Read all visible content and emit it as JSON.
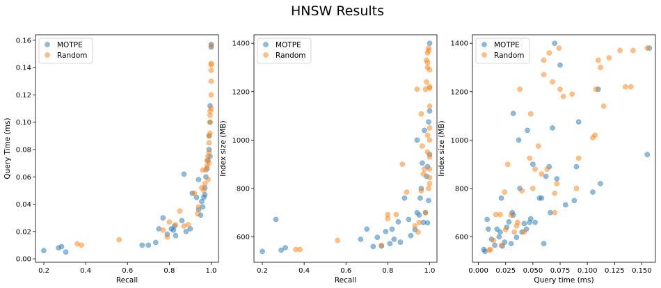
{
  "figure": {
    "title": "HNSW Results"
  },
  "colors": {
    "motpe": "#1f77b4",
    "random": "#ff7f0e"
  },
  "chart_data": [
    {
      "type": "scatter",
      "xlabel": "Recall",
      "ylabel": "Query Time (ms)",
      "xlim": [
        0.16,
        1.035
      ],
      "ylim": [
        -0.0025,
        0.164
      ],
      "xticks": [
        0.2,
        0.4,
        0.6,
        0.8,
        1.0
      ],
      "xtick_labels": [
        "0.2",
        "0.4",
        "0.6",
        "0.8",
        "1.0"
      ],
      "yticks": [
        0.0,
        0.02,
        0.04,
        0.06,
        0.08,
        0.1,
        0.12,
        0.14,
        0.16
      ],
      "ytick_labels": [
        "0.00",
        "0.02",
        "0.04",
        "0.06",
        "0.08",
        "0.10",
        "0.12",
        "0.14",
        "0.16"
      ],
      "legend": {
        "position": "top-left",
        "entries": [
          "MOTPE",
          "Random"
        ]
      },
      "series": [
        {
          "name": "MOTPE",
          "points": [
            [
              0.2,
              0.006
            ],
            [
              0.27,
              0.008
            ],
            [
              0.285,
              0.009
            ],
            [
              0.305,
              0.005
            ],
            [
              0.67,
              0.01
            ],
            [
              0.7,
              0.01
            ],
            [
              0.735,
              0.012
            ],
            [
              0.75,
              0.022
            ],
            [
              0.77,
              0.03
            ],
            [
              0.79,
              0.018
            ],
            [
              0.81,
              0.022
            ],
            [
              0.82,
              0.021
            ],
            [
              0.83,
              0.017
            ],
            [
              0.825,
              0.024
            ],
            [
              0.86,
              0.028
            ],
            [
              0.87,
              0.062
            ],
            [
              0.88,
              0.02
            ],
            [
              0.9,
              0.022
            ],
            [
              0.91,
              0.048
            ],
            [
              0.93,
              0.045
            ],
            [
              0.94,
              0.058
            ],
            [
              0.94,
              0.036
            ],
            [
              0.95,
              0.032
            ],
            [
              0.955,
              0.042
            ],
            [
              0.96,
              0.038
            ],
            [
              0.965,
              0.045
            ],
            [
              0.97,
              0.047
            ],
            [
              0.97,
              0.052
            ],
            [
              0.975,
              0.06
            ],
            [
              0.98,
              0.066
            ],
            [
              0.985,
              0.072
            ],
            [
              0.99,
              0.08
            ],
            [
              0.99,
              0.09
            ],
            [
              0.995,
              0.1
            ],
            [
              0.995,
              0.112
            ],
            [
              1.0,
              0.155
            ],
            [
              1.0,
              0.157
            ],
            [
              0.995,
              0.075
            ]
          ]
        },
        {
          "name": "Random",
          "points": [
            [
              0.36,
              0.011
            ],
            [
              0.38,
              0.01
            ],
            [
              0.56,
              0.014
            ],
            [
              0.77,
              0.021
            ],
            [
              0.79,
              0.016
            ],
            [
              0.8,
              0.027
            ],
            [
              0.83,
              0.025
            ],
            [
              0.85,
              0.035
            ],
            [
              0.87,
              0.024
            ],
            [
              0.89,
              0.025
            ],
            [
              0.92,
              0.048
            ],
            [
              0.935,
              0.033
            ],
            [
              0.94,
              0.038
            ],
            [
              0.955,
              0.052
            ],
            [
              0.96,
              0.065
            ],
            [
              0.965,
              0.05
            ],
            [
              0.97,
              0.055
            ],
            [
              0.975,
              0.065
            ],
            [
              0.98,
              0.068
            ],
            [
              0.98,
              0.072
            ],
            [
              0.985,
              0.058
            ],
            [
              0.985,
              0.075
            ],
            [
              0.99,
              0.07
            ],
            [
              0.99,
              0.078
            ],
            [
              0.99,
              0.085
            ],
            [
              0.99,
              0.09
            ],
            [
              0.995,
              0.092
            ],
            [
              0.995,
              0.1
            ],
            [
              0.995,
              0.105
            ],
            [
              0.995,
              0.108
            ],
            [
              1.0,
              0.11
            ],
            [
              1.0,
              0.12
            ],
            [
              1.0,
              0.13
            ],
            [
              1.0,
              0.138
            ],
            [
              1.0,
              0.142
            ],
            [
              1.0,
              0.143
            ],
            [
              1.0,
              0.156
            ]
          ]
        }
      ]
    },
    {
      "type": "scatter",
      "xlabel": "Recall",
      "ylabel": "Index size (MB)",
      "xlim": [
        0.16,
        1.035
      ],
      "ylim": [
        495,
        1435
      ],
      "xticks": [
        0.2,
        0.4,
        0.6,
        0.8,
        1.0
      ],
      "xtick_labels": [
        "0.2",
        "0.4",
        "0.6",
        "0.8",
        "1.0"
      ],
      "yticks": [
        600,
        800,
        1000,
        1200,
        1400
      ],
      "ytick_labels": [
        "600",
        "800",
        "1000",
        "1200",
        "1400"
      ],
      "legend": {
        "position": "top-left",
        "entries": [
          "MOTPE",
          "Random"
        ]
      },
      "series": [
        {
          "name": "MOTPE",
          "points": [
            [
              0.2,
              540
            ],
            [
              0.265,
              672
            ],
            [
              0.29,
              545
            ],
            [
              0.31,
              555
            ],
            [
              0.67,
              590
            ],
            [
              0.7,
              632
            ],
            [
              0.73,
              560
            ],
            [
              0.75,
              598
            ],
            [
              0.77,
              562
            ],
            [
              0.79,
              622
            ],
            [
              0.81,
              572
            ],
            [
              0.82,
              632
            ],
            [
              0.83,
              590
            ],
            [
              0.85,
              662
            ],
            [
              0.86,
              578
            ],
            [
              0.88,
              760
            ],
            [
              0.9,
              672
            ],
            [
              0.91,
              605
            ],
            [
              0.93,
              630
            ],
            [
              0.94,
              700
            ],
            [
              0.94,
              1000
            ],
            [
              0.95,
              690
            ],
            [
              0.955,
              760
            ],
            [
              0.96,
              800
            ],
            [
              0.965,
              905
            ],
            [
              0.97,
              660
            ],
            [
              0.975,
              1040
            ],
            [
              0.98,
              700
            ],
            [
              0.985,
              850
            ],
            [
              0.99,
              658
            ],
            [
              0.99,
              890
            ],
            [
              0.995,
              1075
            ],
            [
              1.0,
              1120
            ],
            [
              1.0,
              1400
            ],
            [
              1.0,
              940
            ],
            [
              0.995,
              750
            ]
          ]
        },
        {
          "name": "Random",
          "points": [
            [
              0.36,
              548
            ],
            [
              0.38,
              548
            ],
            [
              0.56,
              585
            ],
            [
              0.77,
              565
            ],
            [
              0.8,
              692
            ],
            [
              0.8,
              675
            ],
            [
              0.84,
              692
            ],
            [
              0.87,
              900
            ],
            [
              0.89,
              785
            ],
            [
              0.93,
              645
            ],
            [
              0.94,
              1210
            ],
            [
              0.945,
              620
            ],
            [
              0.95,
              660
            ],
            [
              0.96,
              1108
            ],
            [
              0.96,
              790
            ],
            [
              0.965,
              975
            ],
            [
              0.97,
              860
            ],
            [
              0.975,
              880
            ],
            [
              0.98,
              1210
            ],
            [
              0.98,
              700
            ],
            [
              0.985,
              1330
            ],
            [
              0.985,
              1240
            ],
            [
              0.99,
              1300
            ],
            [
              0.99,
              1320
            ],
            [
              0.99,
              1360
            ],
            [
              0.99,
              950
            ],
            [
              0.99,
              1020
            ],
            [
              0.995,
              1370
            ],
            [
              0.995,
              1380
            ],
            [
              0.995,
              800
            ],
            [
              1.0,
              1215
            ],
            [
              1.0,
              1220
            ],
            [
              1.0,
              1290
            ],
            [
              1.0,
              1140
            ],
            [
              1.0,
              1050
            ],
            [
              1.0,
              1000
            ],
            [
              1.0,
              930
            ],
            [
              1.0,
              880
            ],
            [
              1.0,
              845
            ],
            [
              1.0,
              820
            ]
          ]
        }
      ]
    },
    {
      "type": "scatter",
      "xlabel": "Query time (ms)",
      "ylabel": "Index size (MB)",
      "xlim": [
        -0.0055,
        0.1625
      ],
      "ylim": [
        495,
        1435
      ],
      "xticks": [
        0.0,
        0.025,
        0.05,
        0.075,
        0.1,
        0.125,
        0.15
      ],
      "xtick_labels": [
        "0.000",
        "0.025",
        "0.050",
        "0.075",
        "0.100",
        "0.125",
        "0.150"
      ],
      "yticks": [
        600,
        800,
        1000,
        1200,
        1400
      ],
      "ytick_labels": [
        "600",
        "800",
        "1000",
        "1200",
        "1400"
      ],
      "legend": {
        "position": "top-left",
        "entries": [
          "MOTPE",
          "Random"
        ]
      },
      "series": [
        {
          "name": "MOTPE",
          "points": [
            [
              0.005,
              548
            ],
            [
              0.006,
              540
            ],
            [
              0.008,
              672
            ],
            [
              0.009,
              632
            ],
            [
              0.012,
              590
            ],
            [
              0.015,
              565
            ],
            [
              0.017,
              632
            ],
            [
              0.019,
              600
            ],
            [
              0.02,
              620
            ],
            [
              0.021,
              760
            ],
            [
              0.022,
              562
            ],
            [
              0.024,
              578
            ],
            [
              0.026,
              640
            ],
            [
              0.028,
              662
            ],
            [
              0.03,
              572
            ],
            [
              0.031,
              700
            ],
            [
              0.032,
              690
            ],
            [
              0.032,
              1110
            ],
            [
              0.035,
              598
            ],
            [
              0.037,
              1000
            ],
            [
              0.038,
              800
            ],
            [
              0.04,
              620
            ],
            [
              0.042,
              655
            ],
            [
              0.044,
              632
            ],
            [
              0.045,
              1040
            ],
            [
              0.047,
              660
            ],
            [
              0.048,
              675
            ],
            [
              0.05,
              900
            ],
            [
              0.052,
              660
            ],
            [
              0.056,
              760
            ],
            [
              0.058,
              760
            ],
            [
              0.06,
              572
            ],
            [
              0.062,
              850
            ],
            [
              0.065,
              890
            ],
            [
              0.066,
              700
            ],
            [
              0.068,
              1050
            ],
            [
              0.07,
              1400
            ],
            [
              0.072,
              840
            ],
            [
              0.075,
              1310
            ],
            [
              0.08,
              732
            ],
            [
              0.088,
              750
            ],
            [
              0.09,
              890
            ],
            [
              0.092,
              1075
            ],
            [
              0.105,
              785
            ],
            [
              0.11,
              1210
            ],
            [
              0.112,
              820
            ],
            [
              0.157,
              1380
            ],
            [
              0.155,
              940
            ]
          ]
        },
        {
          "name": "Random",
          "points": [
            [
              0.01,
              545
            ],
            [
              0.011,
              548
            ],
            [
              0.014,
              585
            ],
            [
              0.016,
              692
            ],
            [
              0.02,
              692
            ],
            [
              0.021,
              565
            ],
            [
              0.024,
              785
            ],
            [
              0.025,
              630
            ],
            [
              0.027,
              900
            ],
            [
              0.03,
              690
            ],
            [
              0.033,
              620
            ],
            [
              0.035,
              645
            ],
            [
              0.036,
              660
            ],
            [
              0.038,
              1210
            ],
            [
              0.04,
              790
            ],
            [
              0.042,
              620
            ],
            [
              0.047,
              925
            ],
            [
              0.048,
              1108
            ],
            [
              0.05,
              800
            ],
            [
              0.052,
              880
            ],
            [
              0.055,
              975
            ],
            [
              0.058,
              860
            ],
            [
              0.06,
              1330
            ],
            [
              0.06,
              1270
            ],
            [
              0.063,
              880
            ],
            [
              0.065,
              1360
            ],
            [
              0.068,
              1240
            ],
            [
              0.07,
              780
            ],
            [
              0.07,
              700
            ],
            [
              0.072,
              820
            ],
            [
              0.074,
              1380
            ],
            [
              0.075,
              1210
            ],
            [
              0.078,
              1180
            ],
            [
              0.086,
              1190
            ],
            [
              0.09,
              800
            ],
            [
              0.092,
              925
            ],
            [
              0.105,
              1010
            ],
            [
              0.107,
              1020
            ],
            [
              0.108,
              1210
            ],
            [
              0.11,
              1330
            ],
            [
              0.112,
              1300
            ],
            [
              0.115,
              1140
            ],
            [
              0.12,
              1340
            ],
            [
              0.13,
              1370
            ],
            [
              0.135,
              1220
            ],
            [
              0.14,
              1220
            ],
            [
              0.142,
              1370
            ],
            [
              0.155,
              1380
            ]
          ]
        }
      ]
    }
  ]
}
